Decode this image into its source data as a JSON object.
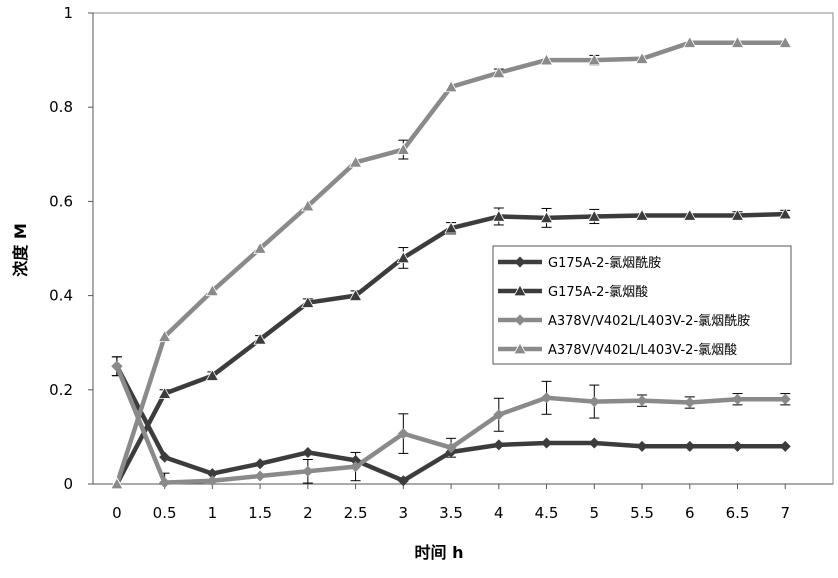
{
  "chart_data": {
    "type": "line",
    "title": "",
    "xlabel": "时间 h",
    "ylabel": "浓度 M",
    "categories": [
      "0",
      "0.5",
      "1",
      "1.5",
      "2",
      "2.5",
      "3",
      "3.5",
      "4",
      "4.5",
      "5",
      "5.5",
      "6",
      "6.5",
      "7"
    ],
    "ylim": [
      0,
      1
    ],
    "yticks": [
      "0",
      "0.2",
      "0.4",
      "0.6",
      "0.8",
      "1"
    ],
    "grid": false,
    "legend_position": "right-middle",
    "series": [
      {
        "name": "G175A-2-氯烟酰胺",
        "marker": "diamond",
        "color": "#3c3c3c",
        "values": [
          0.25,
          0.057,
          0.022,
          0.043,
          0.067,
          0.05,
          0.007,
          0.068,
          0.083,
          0.087,
          0.087,
          0.08,
          0.08,
          0.08,
          0.08
        ],
        "errors": [
          0.02,
          0,
          0,
          0,
          0,
          0,
          0,
          0,
          0,
          0,
          0,
          0,
          0,
          0,
          0
        ]
      },
      {
        "name": "G175A-2-氯烟酸",
        "marker": "triangle",
        "color": "#3c3c3c",
        "values": [
          0.0,
          0.192,
          0.23,
          0.307,
          0.385,
          0.4,
          0.48,
          0.543,
          0.568,
          0.565,
          0.568,
          0.57,
          0.57,
          0.57,
          0.573
        ],
        "errors": [
          0,
          0.008,
          0.008,
          0.008,
          0.008,
          0.01,
          0.022,
          0.012,
          0.018,
          0.02,
          0.015,
          0,
          0,
          0.008,
          0.008
        ]
      },
      {
        "name": "A378V/V402L/L403V-2-氯烟酰胺",
        "marker": "diamond",
        "color": "#8a8a8a",
        "values": [
          0.25,
          0.003,
          0.007,
          0.017,
          0.027,
          0.037,
          0.107,
          0.077,
          0.147,
          0.183,
          0.175,
          0.177,
          0.173,
          0.18,
          0.18
        ],
        "errors": [
          0.02,
          0.02,
          0,
          0,
          0.025,
          0.03,
          0.042,
          0.02,
          0.035,
          0.035,
          0.035,
          0.012,
          0.012,
          0.012,
          0.012
        ]
      },
      {
        "name": "A378V/V402L/L403V-2-氯烟酸",
        "marker": "triangle",
        "color": "#8a8a8a",
        "values": [
          0.0,
          0.313,
          0.41,
          0.5,
          0.59,
          0.683,
          0.71,
          0.843,
          0.873,
          0.9,
          0.9,
          0.903,
          0.937,
          0.937,
          0.937
        ],
        "errors": [
          0,
          0,
          0,
          0,
          0,
          0,
          0.02,
          0,
          0.008,
          0,
          0.01,
          0,
          0,
          0,
          0
        ]
      }
    ]
  }
}
